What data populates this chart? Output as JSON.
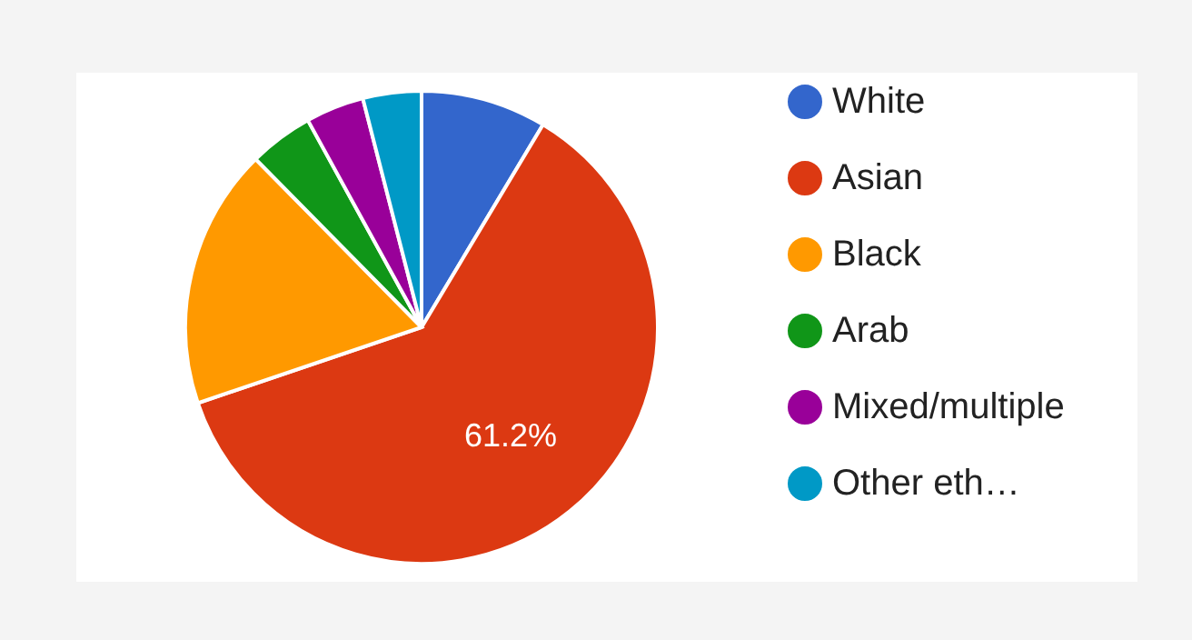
{
  "chart_data": {
    "type": "pie",
    "categories": [
      "White",
      "Asian",
      "Black",
      "Arab",
      "Mixed/multiple",
      "Other eth…"
    ],
    "values": [
      8.6,
      61.2,
      17.8,
      4.4,
      4.0,
      4.0
    ],
    "colors": [
      "#3366cc",
      "#dc3912",
      "#ff9900",
      "#109618",
      "#990099",
      "#0099c6"
    ],
    "value_labels": [
      null,
      "61.2%",
      null,
      null,
      null,
      null
    ],
    "legend": "right"
  }
}
